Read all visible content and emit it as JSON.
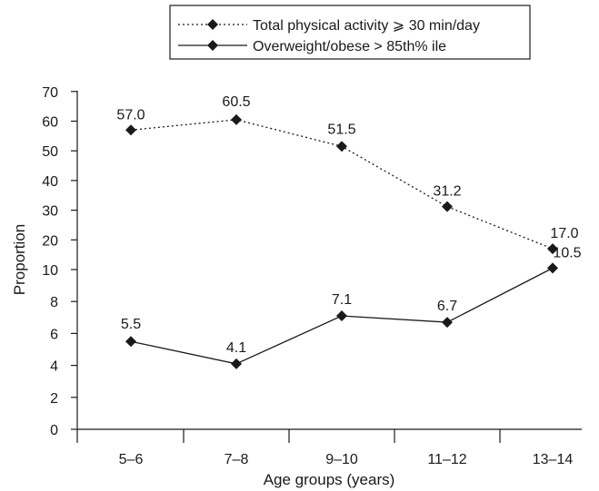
{
  "chart_data": {
    "type": "line",
    "categories": [
      "5–6",
      "7–8",
      "9–10",
      "11–12",
      "13–14"
    ],
    "xlabel": "Age groups (years)",
    "ylabel": "Proportion",
    "y_axis_break": "two segments: 0–10 (ticks 0,2,4,6,8,10) and 10–70 (ticks 20,30,40,50,60,70)",
    "y_ticks": [
      "0",
      "2",
      "4",
      "6",
      "8",
      "10",
      "20",
      "30",
      "40",
      "50",
      "60",
      "70"
    ],
    "legend_position": "top-right",
    "series": [
      {
        "name": "Total physical activity ⩾ 30 min/day",
        "line_style": "dotted",
        "marker": "diamond",
        "values": [
          57.0,
          60.5,
          51.5,
          31.2,
          17.0
        ],
        "labels": [
          "57.0",
          "60.5",
          "51.5",
          "31.2",
          "17.0"
        ]
      },
      {
        "name": "Overweight/obese > 85th% ile",
        "line_style": "solid",
        "marker": "diamond",
        "values": [
          5.5,
          4.1,
          7.1,
          6.7,
          10.5
        ],
        "labels": [
          "5.5",
          "4.1",
          "7.1",
          "6.7",
          "10.5"
        ]
      }
    ]
  }
}
